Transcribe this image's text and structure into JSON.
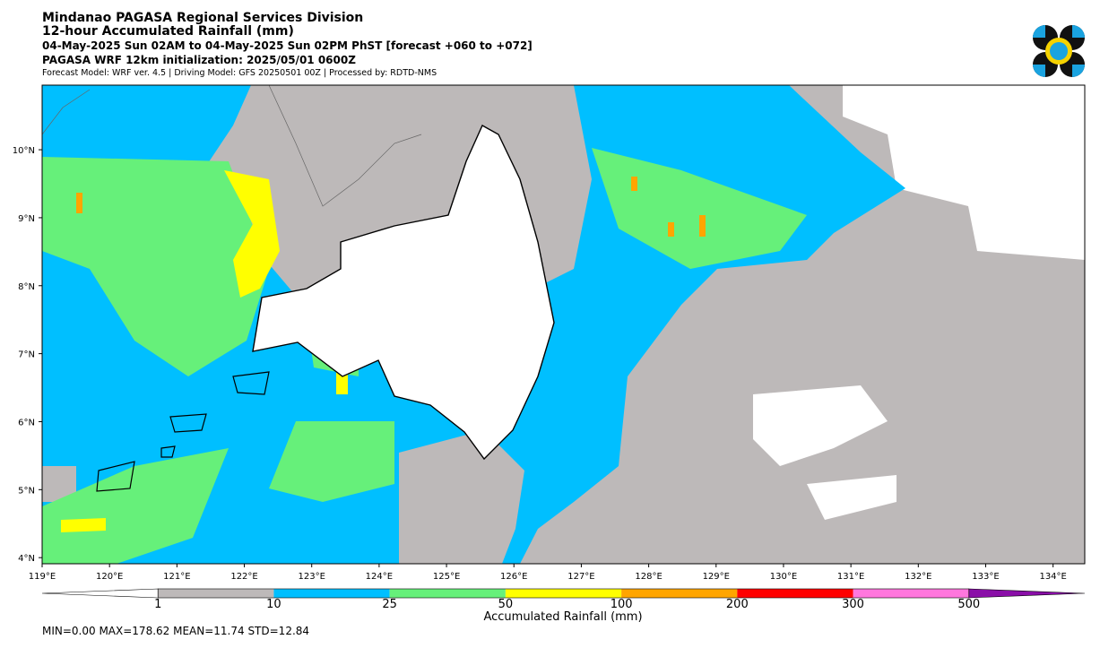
{
  "header": {
    "title": "Mindanao PAGASA Regional Services Division",
    "subtitle": "12-hour Accumulated Rainfall (mm)",
    "period": "04-May-2025 Sun 02AM to 04-May-2025 Sun 02PM PhST [forecast +060 to +072]",
    "initialization": "PAGASA WRF 12km initialization: 2025/05/01 0600Z",
    "model_info": "Forecast Model: WRF ver. 4.5 | Driving Model: GFS 20250501 00Z | Processed by: RDTD-NMS"
  },
  "map": {
    "xlim": [
      119,
      134.47
    ],
    "ylim": [
      3.91,
      10.95
    ],
    "xticks": [
      {
        "value": 119,
        "label": "119°E"
      },
      {
        "value": 120,
        "label": "120°E"
      },
      {
        "value": 121,
        "label": "121°E"
      },
      {
        "value": 122,
        "label": "122°E"
      },
      {
        "value": 123,
        "label": "123°E"
      },
      {
        "value": 124,
        "label": "124°E"
      },
      {
        "value": 125,
        "label": "125°E"
      },
      {
        "value": 126,
        "label": "126°E"
      },
      {
        "value": 127,
        "label": "127°E"
      },
      {
        "value": 128,
        "label": "128°E"
      },
      {
        "value": 129,
        "label": "129°E"
      },
      {
        "value": 130,
        "label": "130°E"
      },
      {
        "value": 131,
        "label": "131°E"
      },
      {
        "value": 132,
        "label": "132°E"
      },
      {
        "value": 133,
        "label": "133°E"
      },
      {
        "value": 134,
        "label": "134°E"
      }
    ],
    "yticks": [
      {
        "value": 10,
        "label": "10°N"
      },
      {
        "value": 9,
        "label": "9°N"
      },
      {
        "value": 8,
        "label": "8°N"
      },
      {
        "value": 7,
        "label": "7°N"
      },
      {
        "value": 6,
        "label": "6°N"
      },
      {
        "value": 5,
        "label": "5°N"
      },
      {
        "value": 4,
        "label": "4°N"
      }
    ]
  },
  "colorbar": {
    "label": "Accumulated Rainfall (mm)",
    "levels": [
      1,
      10,
      25,
      50,
      100,
      200,
      300,
      500
    ],
    "colors": [
      "#ffffff",
      "#bdb9b9",
      "#00bfff",
      "#66f07a",
      "#ffff00",
      "#ffa500",
      "#ff0000",
      "#ff77dd",
      "#8a0ea8"
    ]
  },
  "stats": "MIN=0.00   MAX=178.62   MEAN=11.74   STD=12.84"
}
